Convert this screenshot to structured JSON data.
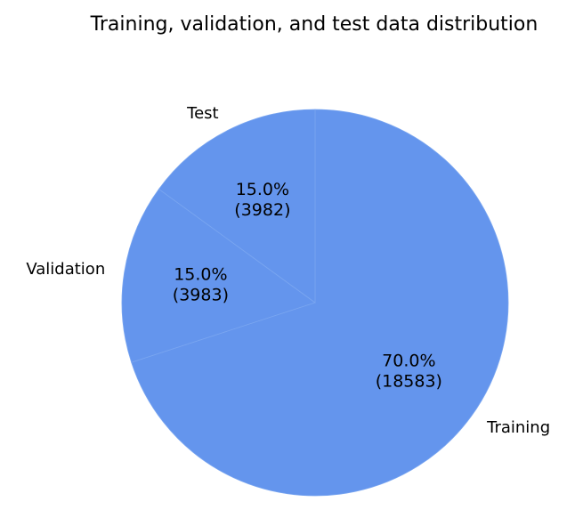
{
  "chart_data": {
    "type": "pie",
    "title": "Training, validation, and test data distribution",
    "categories": [
      "Training",
      "Validation",
      "Test"
    ],
    "values": [
      18583,
      3983,
      3982
    ],
    "percent_labels": [
      "70.0%",
      "15.0%",
      "15.0%"
    ],
    "count_labels": [
      "(18583)",
      "(3983)",
      "(3982)"
    ],
    "start_angle_deg": 90,
    "direction": "clockwise",
    "colors": {
      "slice": "#6495ED",
      "edge": "#7aa6f0"
    }
  }
}
